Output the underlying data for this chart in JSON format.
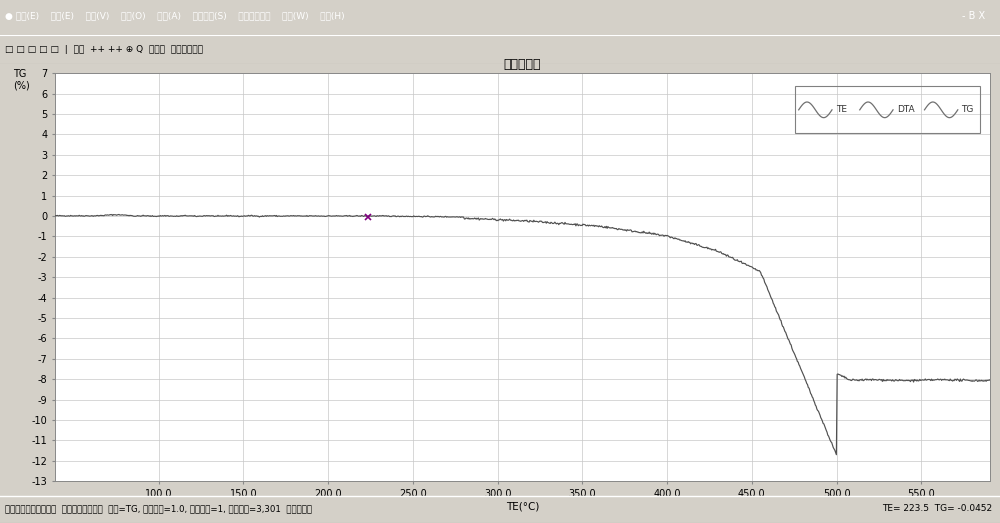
{
  "title": "恒久热分析",
  "xlabel": "TE(°C)",
  "ylabel_line1": "TG",
  "ylabel_line2": "(%)",
  "xlim": [
    38.9,
    590.5
  ],
  "ylim": [
    -13,
    7
  ],
  "yticks": [
    7,
    6,
    5,
    4,
    3,
    2,
    1,
    0,
    -1,
    -2,
    -3,
    -4,
    -5,
    -6,
    -7,
    -8,
    -9,
    -10,
    -11,
    -12,
    -13
  ],
  "xticks": [
    100.0,
    150.0,
    200.0,
    250.0,
    300.0,
    350.0,
    400.0,
    450.0,
    500.0,
    550.0
  ],
  "xtick_first": 38.9,
  "xtick_last": 590.5,
  "bg_color": "#d4d0c8",
  "plot_bg_color": "#ffffff",
  "grid_color": "#c8c8c8",
  "line_color": "#505050",
  "marker_x": 223.5,
  "marker_y": -0.04,
  "marker_color": "#800080",
  "legend_bg": "#f0fff0",
  "legend_border": "#808080",
  "title_bar_color": "#000080",
  "title_bar_text_color": "#ffffff",
  "status_bar_text": "状态：打开文件成功。  此文件基本设置，  仪器=TG, 采样周期=1.0, 加热段数=1, 采样点数=3,301  通信口状态",
  "status_bar_right": "TE= 223.5  TG= -0.0452",
  "menubar_items": "● 文件(E)    编辑(E)    视图(V)    选项(O)    分析(A)    系统选项(S)    辅助计算工具    窗口(W)    帮助(H)                                                                        - B X",
  "toolbar_items": "□ □ □ □ □  | 网格  ++ ++ ⊕ Q  辅助线  抓屏・标注・"
}
